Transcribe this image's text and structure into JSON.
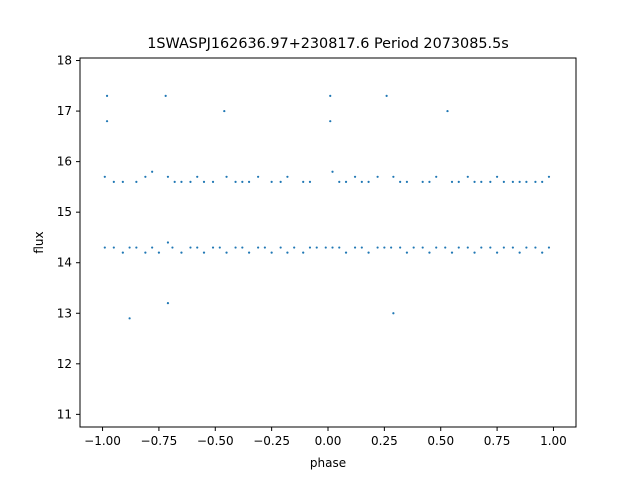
{
  "chart_data": {
    "type": "scatter",
    "title": "1SWASPJ162636.97+230817.6 Period 2073085.5s",
    "xlabel": "phase",
    "ylabel": "flux",
    "xlim": [
      -1.1,
      1.1
    ],
    "ylim": [
      10.75,
      18.05
    ],
    "xticks": [
      -1.0,
      -0.75,
      -0.5,
      -0.25,
      0.0,
      0.25,
      0.5,
      0.75,
      1.0
    ],
    "xtick_labels": [
      "−1.00",
      "−0.75",
      "−0.50",
      "−0.25",
      "0.00",
      "0.25",
      "0.50",
      "0.75",
      "1.00"
    ],
    "yticks": [
      11,
      12,
      13,
      14,
      15,
      16,
      17,
      18
    ],
    "ytick_labels": [
      "11",
      "12",
      "13",
      "14",
      "15",
      "16",
      "17",
      "18"
    ],
    "grid": false,
    "marker_color": "#1f77b4",
    "series": [
      {
        "points": [
          [
            -0.99,
            14.3
          ],
          [
            -0.99,
            15.7
          ],
          [
            -0.98,
            16.8
          ],
          [
            -0.98,
            17.3
          ],
          [
            -0.95,
            14.3
          ],
          [
            -0.95,
            15.6
          ],
          [
            -0.91,
            14.2
          ],
          [
            -0.91,
            15.6
          ],
          [
            -0.88,
            14.3
          ],
          [
            -0.88,
            12.9
          ],
          [
            -0.85,
            14.3
          ],
          [
            -0.85,
            15.6
          ],
          [
            -0.81,
            14.2
          ],
          [
            -0.81,
            15.7
          ],
          [
            -0.78,
            14.3
          ],
          [
            -0.78,
            15.8
          ],
          [
            -0.75,
            14.2
          ],
          [
            -0.72,
            17.3
          ],
          [
            -0.71,
            13.2
          ],
          [
            -0.71,
            14.4
          ],
          [
            -0.71,
            15.7
          ],
          [
            -0.69,
            14.3
          ],
          [
            -0.68,
            15.6
          ],
          [
            -0.65,
            14.2
          ],
          [
            -0.65,
            15.6
          ],
          [
            -0.61,
            14.3
          ],
          [
            -0.61,
            15.6
          ],
          [
            -0.58,
            14.3
          ],
          [
            -0.58,
            15.7
          ],
          [
            -0.55,
            14.2
          ],
          [
            -0.55,
            15.6
          ],
          [
            -0.51,
            14.3
          ],
          [
            -0.51,
            15.6
          ],
          [
            -0.48,
            14.3
          ],
          [
            -0.46,
            17.0
          ],
          [
            -0.45,
            14.2
          ],
          [
            -0.45,
            15.7
          ],
          [
            -0.41,
            14.3
          ],
          [
            -0.41,
            15.6
          ],
          [
            -0.38,
            14.3
          ],
          [
            -0.38,
            15.6
          ],
          [
            -0.35,
            14.2
          ],
          [
            -0.35,
            15.6
          ],
          [
            -0.31,
            14.3
          ],
          [
            -0.31,
            15.7
          ],
          [
            -0.28,
            14.3
          ],
          [
            -0.25,
            14.2
          ],
          [
            -0.25,
            15.6
          ],
          [
            -0.21,
            14.3
          ],
          [
            -0.21,
            15.6
          ],
          [
            -0.18,
            14.2
          ],
          [
            -0.18,
            15.7
          ],
          [
            -0.15,
            14.3
          ],
          [
            -0.11,
            14.2
          ],
          [
            -0.11,
            15.6
          ],
          [
            -0.08,
            14.3
          ],
          [
            -0.08,
            15.6
          ],
          [
            -0.05,
            14.3
          ],
          [
            -0.01,
            14.3
          ],
          [
            0.01,
            16.8
          ],
          [
            0.01,
            17.3
          ],
          [
            0.02,
            14.3
          ],
          [
            0.02,
            15.8
          ],
          [
            0.05,
            14.3
          ],
          [
            0.05,
            15.6
          ],
          [
            0.08,
            14.2
          ],
          [
            0.08,
            15.6
          ],
          [
            0.12,
            14.3
          ],
          [
            0.12,
            15.7
          ],
          [
            0.15,
            14.3
          ],
          [
            0.15,
            15.6
          ],
          [
            0.18,
            14.2
          ],
          [
            0.18,
            15.6
          ],
          [
            0.22,
            14.3
          ],
          [
            0.22,
            15.7
          ],
          [
            0.25,
            14.3
          ],
          [
            0.26,
            17.3
          ],
          [
            0.28,
            14.3
          ],
          [
            0.29,
            13.0
          ],
          [
            0.29,
            15.7
          ],
          [
            0.32,
            14.3
          ],
          [
            0.32,
            15.6
          ],
          [
            0.35,
            14.2
          ],
          [
            0.35,
            15.6
          ],
          [
            0.38,
            14.3
          ],
          [
            0.42,
            14.3
          ],
          [
            0.42,
            15.6
          ],
          [
            0.45,
            14.2
          ],
          [
            0.45,
            15.6
          ],
          [
            0.48,
            14.3
          ],
          [
            0.48,
            15.7
          ],
          [
            0.52,
            14.3
          ],
          [
            0.53,
            17.0
          ],
          [
            0.55,
            14.2
          ],
          [
            0.55,
            15.6
          ],
          [
            0.58,
            14.3
          ],
          [
            0.58,
            15.6
          ],
          [
            0.62,
            14.3
          ],
          [
            0.62,
            15.7
          ],
          [
            0.65,
            14.2
          ],
          [
            0.65,
            15.6
          ],
          [
            0.68,
            14.3
          ],
          [
            0.68,
            15.6
          ],
          [
            0.72,
            14.3
          ],
          [
            0.72,
            15.6
          ],
          [
            0.75,
            14.2
          ],
          [
            0.75,
            15.7
          ],
          [
            0.78,
            14.3
          ],
          [
            0.78,
            15.6
          ],
          [
            0.82,
            14.3
          ],
          [
            0.82,
            15.6
          ],
          [
            0.85,
            14.2
          ],
          [
            0.85,
            15.6
          ],
          [
            0.88,
            14.3
          ],
          [
            0.88,
            15.6
          ],
          [
            0.92,
            14.3
          ],
          [
            0.92,
            15.6
          ],
          [
            0.95,
            14.2
          ],
          [
            0.95,
            15.6
          ],
          [
            0.98,
            14.3
          ],
          [
            0.98,
            15.7
          ]
        ]
      }
    ]
  }
}
